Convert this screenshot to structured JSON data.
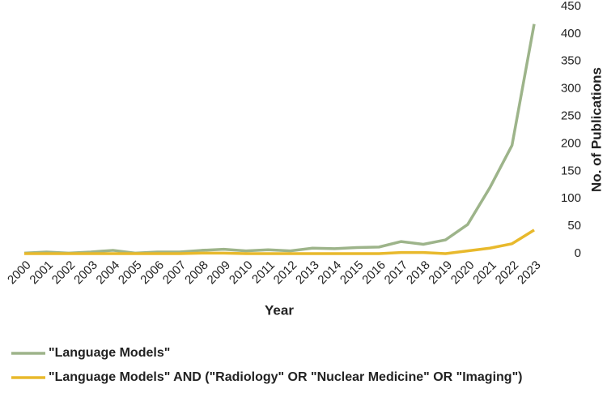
{
  "chart_data": {
    "type": "line",
    "x_label": "Year",
    "y_label": "No. of Publications",
    "categories": [
      "2000",
      "2001",
      "2002",
      "2003",
      "2004",
      "2005",
      "2006",
      "2007",
      "2008",
      "2009",
      "2010",
      "2011",
      "2012",
      "2013",
      "2014",
      "2015",
      "2016",
      "2017",
      "2018",
      "2019",
      "2020",
      "2021",
      "2022",
      "2023"
    ],
    "series": [
      {
        "name": "\"Language Models\"",
        "color": "#9db48a",
        "values": [
          1,
          3,
          1,
          3,
          6,
          1,
          3,
          3,
          6,
          8,
          5,
          7,
          5,
          10,
          9,
          11,
          12,
          22,
          17,
          25,
          53,
          120,
          197,
          418
        ]
      },
      {
        "name": "\"Language Models\" AND (\"Radiology\" OR \"Nuclear Medicine\" OR \"Imaging\")",
        "color": "#e8b92c",
        "values": [
          0,
          0,
          0,
          0,
          0,
          0,
          0,
          0,
          1,
          1,
          0,
          0,
          0,
          0,
          0,
          0,
          0,
          2,
          2,
          0,
          5,
          10,
          18,
          43
        ]
      }
    ],
    "ylim": [
      0,
      450
    ],
    "yticks": [
      0,
      50,
      100,
      150,
      200,
      250,
      300,
      350,
      400,
      450
    ],
    "y_axis_side": "right",
    "legend": "bottom",
    "grid": false
  }
}
